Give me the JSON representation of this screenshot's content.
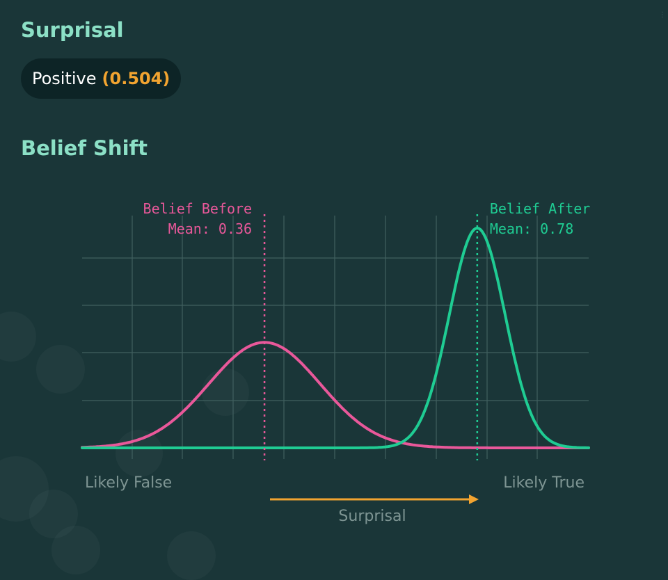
{
  "surprisal": {
    "title": "Surprisal",
    "label": "Positive",
    "value": "(0.504)"
  },
  "belief_shift": {
    "title": "Belief Shift"
  },
  "chart_data": {
    "type": "area",
    "xlim": [
      0,
      1
    ],
    "x_min_label": "Likely False",
    "x_max_label": "Likely True",
    "direction_label": "Surprisal",
    "grid": true,
    "series": [
      {
        "name": "Belief Before",
        "mean_label": "Mean: 0.36",
        "mean": 0.36,
        "sd": 0.11,
        "relative_peak": 0.48,
        "color": "#e9589a"
      },
      {
        "name": "Belief After",
        "mean_label": "Mean: 0.78",
        "mean": 0.78,
        "sd": 0.055,
        "relative_peak": 1.0,
        "color": "#1fcc93"
      }
    ],
    "colors": {
      "grid": "#41605f",
      "arrow": "#f2a430",
      "axis_text": "#7e9593"
    }
  }
}
